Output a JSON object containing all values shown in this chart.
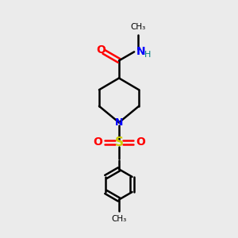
{
  "bg_color": "#ebebeb",
  "line_color": "#000000",
  "N_color": "#0000ff",
  "O_color": "#ff0000",
  "S_color": "#cccc00",
  "H_color": "#008080",
  "bond_lw": 1.8,
  "fig_size": [
    3.0,
    3.0
  ],
  "dpi": 100,
  "xlim": [
    0,
    10
  ],
  "ylim": [
    0,
    10
  ]
}
